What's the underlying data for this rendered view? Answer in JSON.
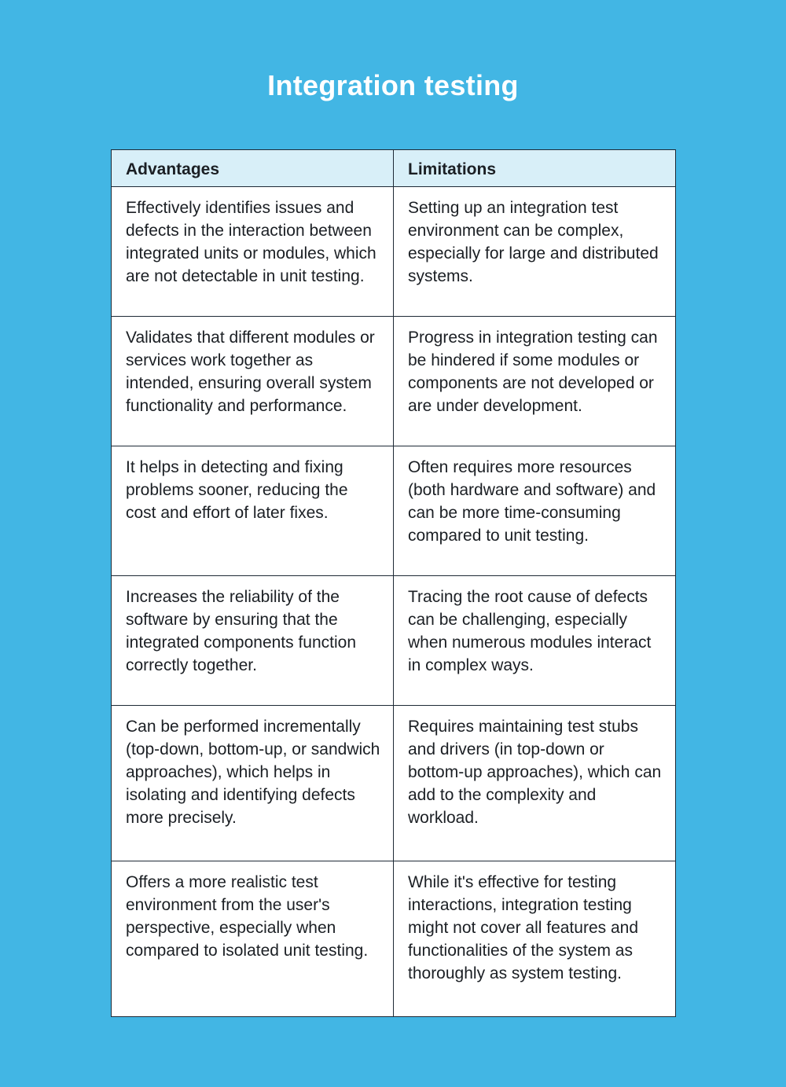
{
  "title": "Integration testing",
  "table": {
    "headers": [
      "Advantages",
      "Limitations"
    ],
    "rows": [
      [
        "Effectively identifies issues and defects in the interaction between integrated units or modules, which are not detectable in unit testing.",
        "Setting up an integration test environment can be complex, especially for large and distributed systems."
      ],
      [
        "Validates that different modules or services work together as intended, ensuring overall system functionality and performance.",
        "Progress in integration testing can be hindered if some modules or components are not developed or are under development."
      ],
      [
        "It helps in detecting and fixing problems sooner, reducing the cost and effort of later fixes.",
        "Often requires more resources (both hardware and software) and can be more time-consuming compared to unit testing."
      ],
      [
        "Increases the reliability of the software by ensuring that the integrated components function correctly together.",
        "Tracing the root cause of defects can be challenging, especially when numerous modules interact in complex ways."
      ],
      [
        "Can be performed incrementally (top-down, bottom-up, or sandwich approaches), which helps in isolating and identifying defects more precisely.",
        "Requires maintaining test stubs and drivers (in top-down or bottom-up approaches), which can add to the complexity and workload."
      ],
      [
        "Offers a more realistic test environment from the user's perspective, especially when compared to isolated unit testing.",
        "While it's effective for testing interactions, integration testing might not cover all features and functionalities of the system as thoroughly as system testing."
      ]
    ]
  },
  "colors": {
    "background": "#42b6e4",
    "header": "#d8eff8",
    "border": "#1e2a36"
  }
}
